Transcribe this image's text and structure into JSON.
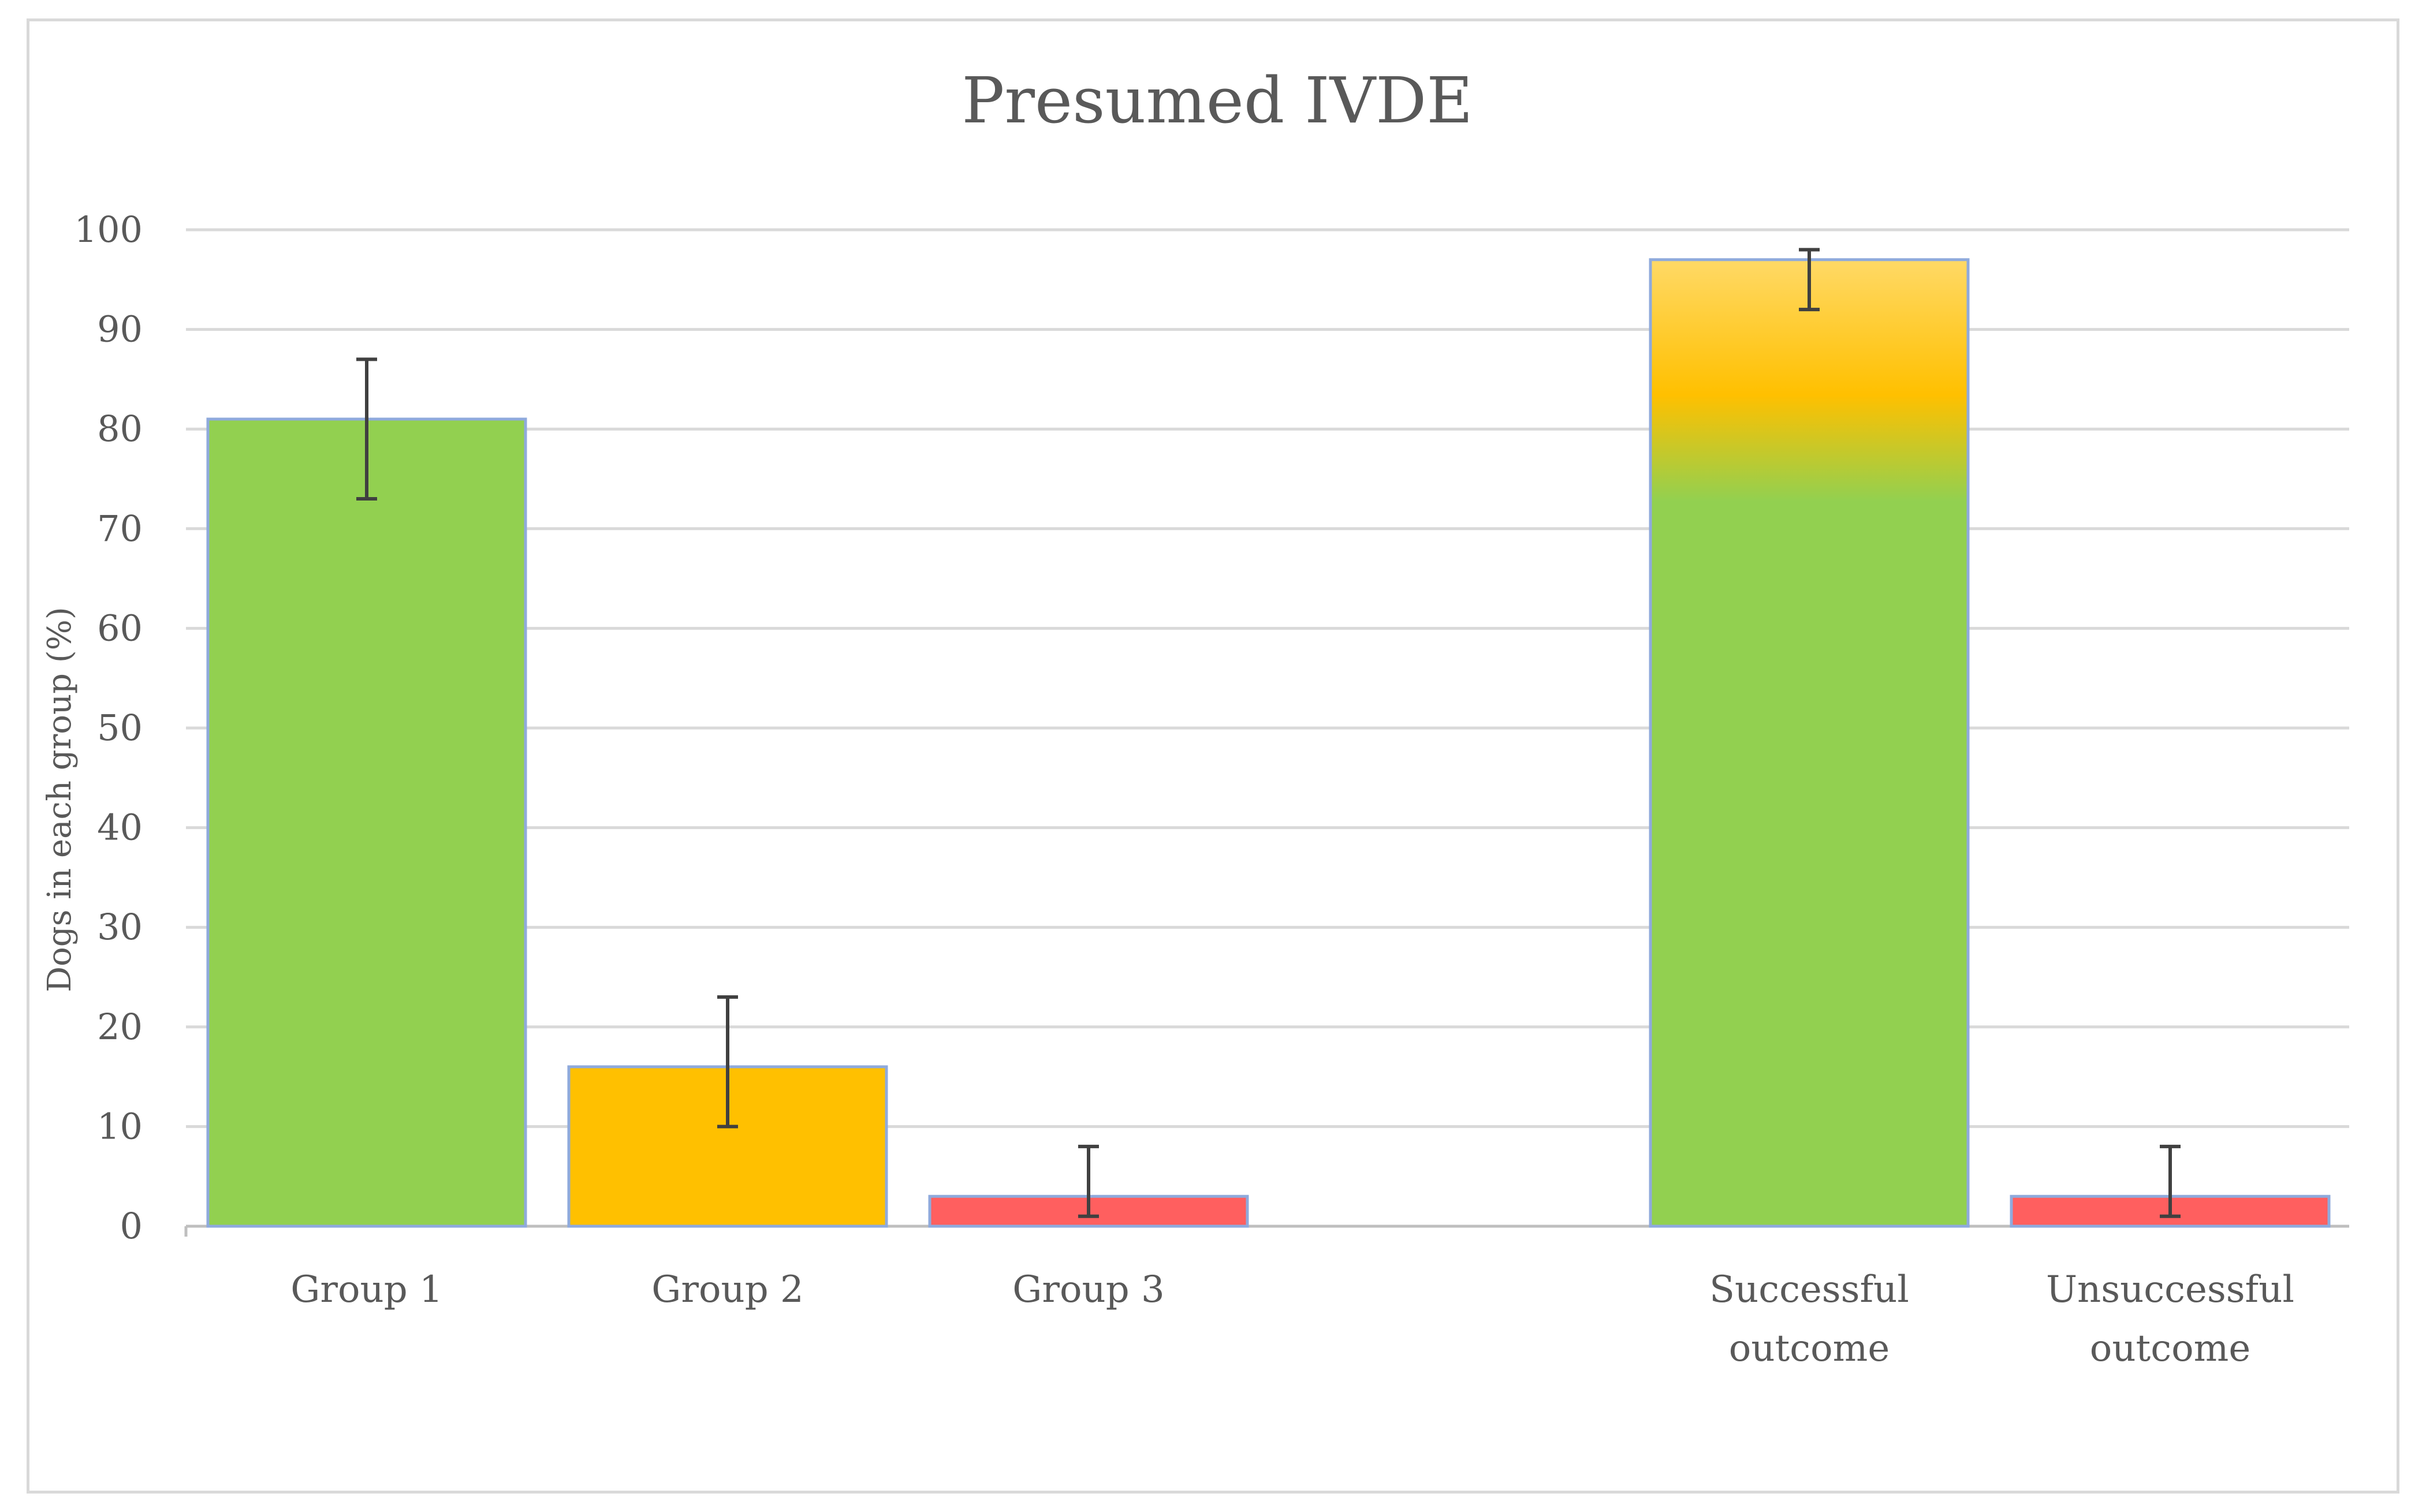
{
  "chart_data": {
    "type": "bar",
    "title": "Presumed IVDE",
    "xlabel": "",
    "ylabel": "Dogs in each group (%)",
    "ylim": [
      0,
      100
    ],
    "yticks": [
      0,
      10,
      20,
      30,
      40,
      50,
      60,
      70,
      80,
      90,
      100
    ],
    "grid": true,
    "categories": [
      {
        "label_lines": [
          "Group 1"
        ]
      },
      {
        "label_lines": [
          "Group 2"
        ]
      },
      {
        "label_lines": [
          "Group 3"
        ]
      },
      {
        "label_lines": [
          "Successful",
          "outcome"
        ]
      },
      {
        "label_lines": [
          "Unsuccessful",
          "outcome"
        ]
      }
    ],
    "values": [
      81,
      16,
      3,
      97,
      3
    ],
    "error_low": [
      73,
      10,
      1,
      92,
      1
    ],
    "error_high": [
      87,
      23,
      8,
      98,
      8
    ],
    "colors": [
      "#92d050",
      "#ffc000",
      "#ff5f5f",
      "gradient-green-to-yellow",
      "#ff5f5f"
    ]
  },
  "colors": {
    "green": "#92d050",
    "amber": "#ffc000",
    "light_yellow": "#ffd966",
    "red": "#ff5f5f",
    "bar_border": "#8faadc",
    "grid": "#d9d9d9",
    "text": "#595959",
    "error_bar": "#404040"
  }
}
